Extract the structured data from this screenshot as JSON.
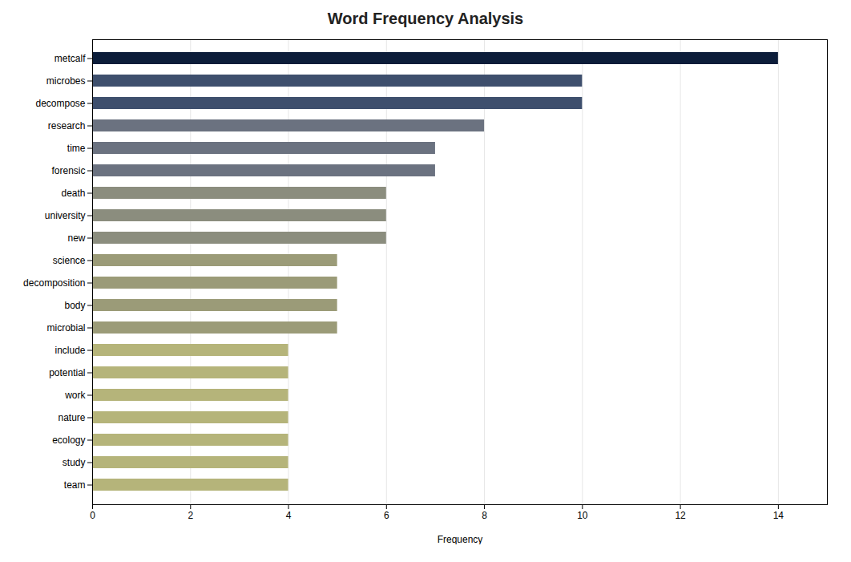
{
  "chart_data": {
    "type": "bar",
    "orientation": "horizontal",
    "title": "Word Frequency Analysis",
    "categories": [
      "metcalf",
      "microbes",
      "decompose",
      "research",
      "time",
      "forensic",
      "death",
      "university",
      "new",
      "science",
      "decomposition",
      "body",
      "microbial",
      "include",
      "potential",
      "work",
      "nature",
      "ecology",
      "study",
      "team"
    ],
    "values": [
      14,
      10,
      10,
      8,
      7,
      7,
      6,
      6,
      6,
      5,
      5,
      5,
      5,
      4,
      4,
      4,
      4,
      4,
      4,
      4
    ],
    "colors": [
      "#0c1d3a",
      "#3e4f6d",
      "#3e4f6d",
      "#6b7280",
      "#6b7280",
      "#6b7280",
      "#8b8d7e",
      "#8b8d7e",
      "#8b8d7e",
      "#9b9b78",
      "#9b9b78",
      "#9b9b78",
      "#9b9b78",
      "#b5b47a",
      "#b5b47a",
      "#b5b47a",
      "#b5b47a",
      "#b5b47a",
      "#b5b47a",
      "#b5b47a"
    ],
    "xlabel": "Frequency",
    "xlim": [
      0,
      15
    ],
    "xticks": [
      0,
      2,
      4,
      6,
      8,
      10,
      12,
      14
    ],
    "grid": true
  }
}
